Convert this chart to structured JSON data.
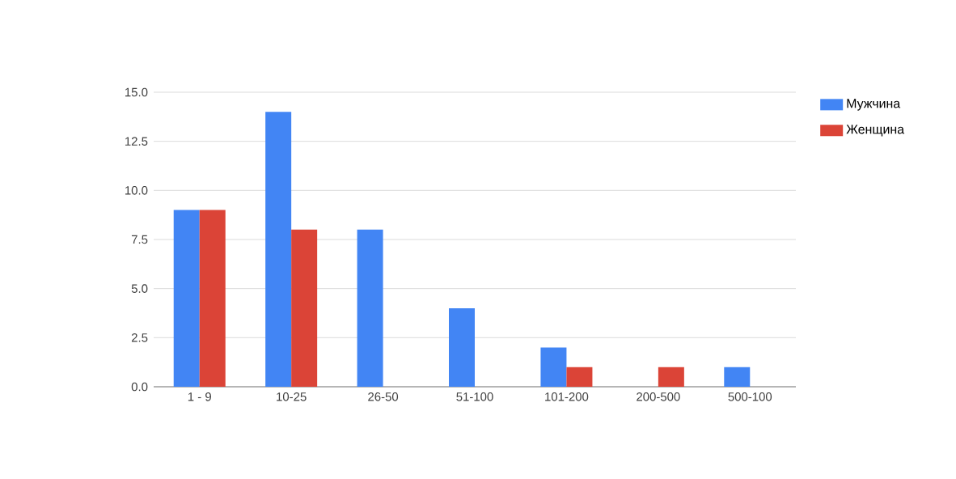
{
  "chart_data": {
    "type": "bar",
    "categories": [
      "1 - 9",
      "10-25",
      "26-50",
      "51-100",
      "101-200",
      "200-500",
      "500-100"
    ],
    "series": [
      {
        "name": "Мужчина",
        "color": "#4285f4",
        "values": [
          9,
          14,
          8,
          4,
          2,
          0,
          1
        ]
      },
      {
        "name": "Женщина",
        "color": "#db4437",
        "values": [
          9,
          8,
          0,
          0,
          1,
          1,
          0
        ]
      }
    ],
    "ylim": [
      0,
      15
    ],
    "yticks": [
      {
        "value": 0,
        "label": "0.0"
      },
      {
        "value": 2.5,
        "label": "2.5"
      },
      {
        "value": 5,
        "label": "5.0"
      },
      {
        "value": 7.5,
        "label": "7.5"
      },
      {
        "value": 10,
        "label": "10.0"
      },
      {
        "value": 12.5,
        "label": "12.5"
      },
      {
        "value": 15,
        "label": "15.0"
      }
    ],
    "grid": "y",
    "legend": "right"
  }
}
